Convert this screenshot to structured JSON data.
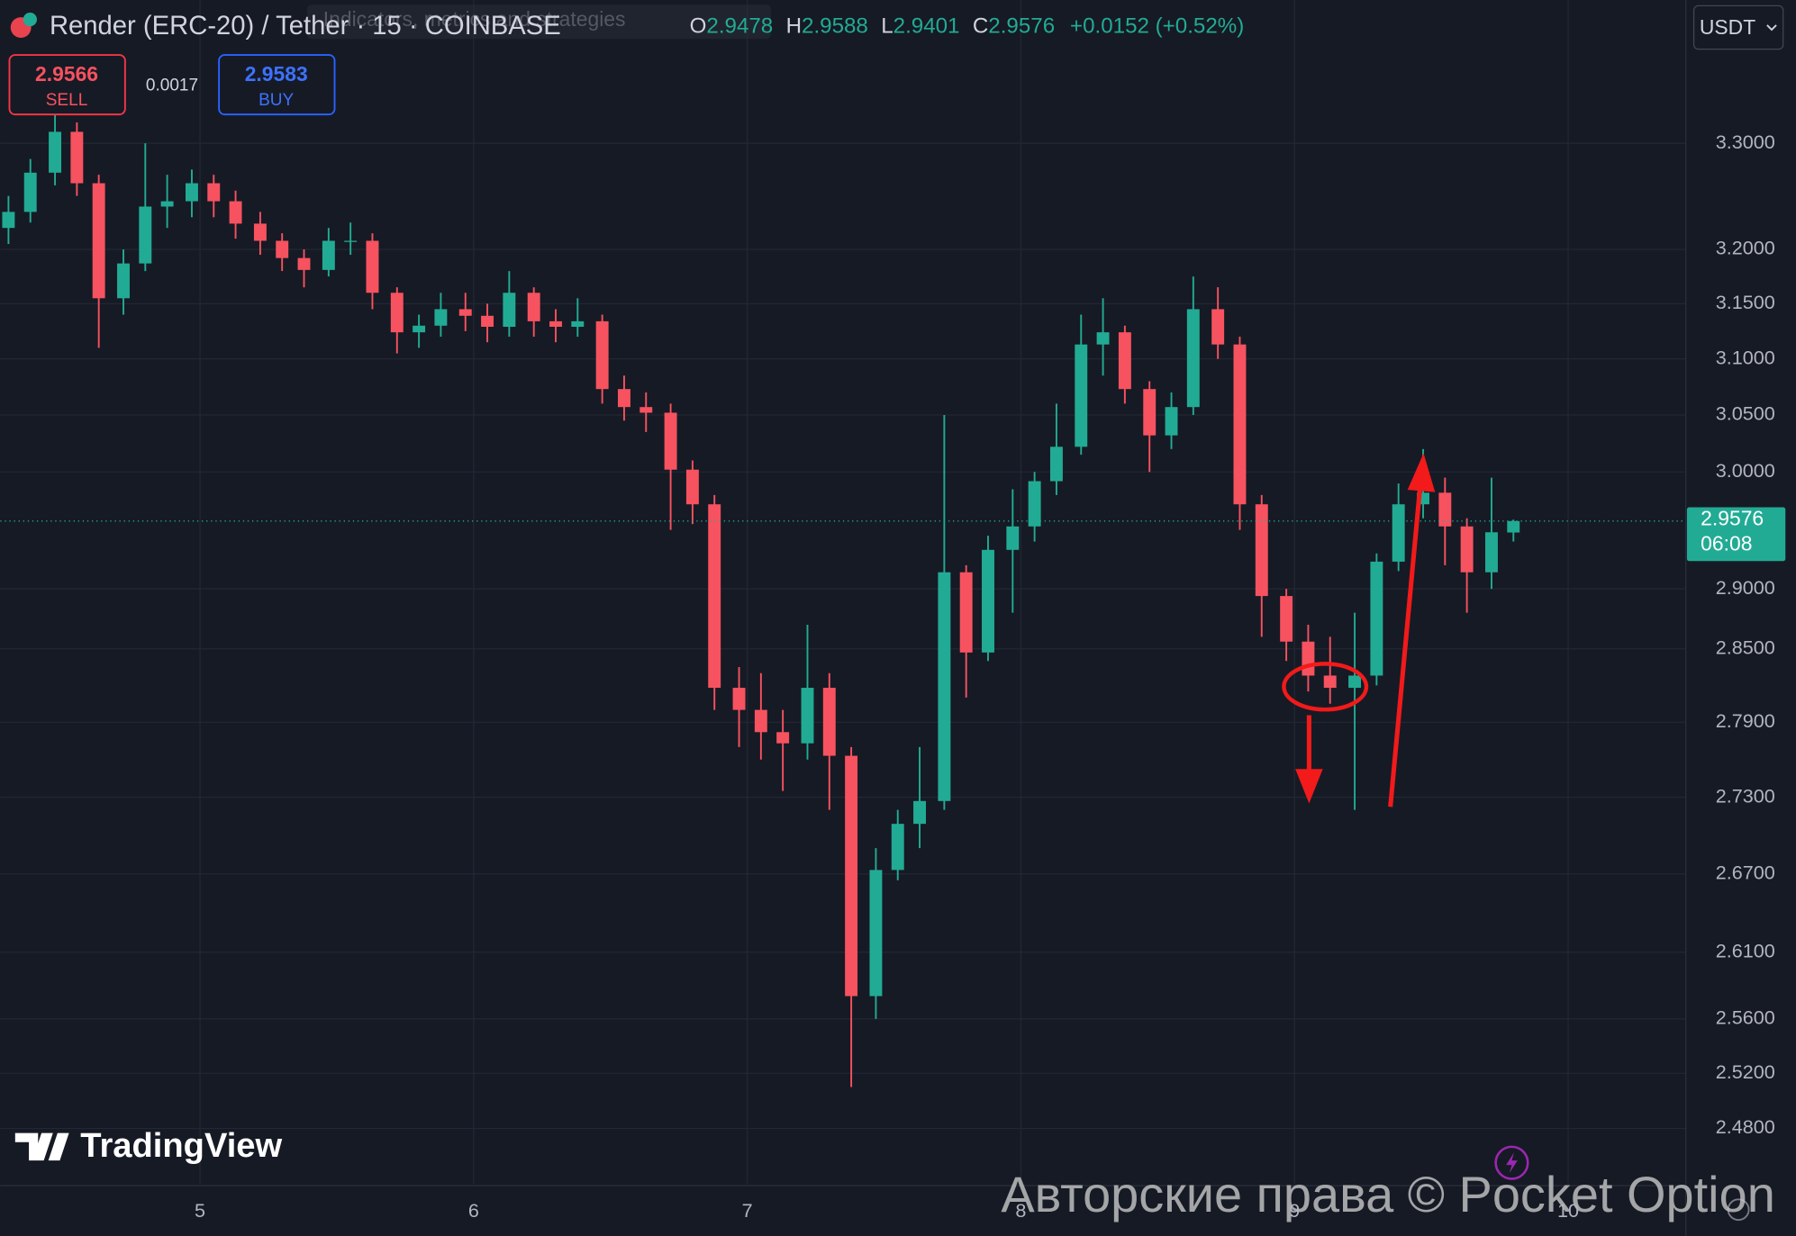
{
  "toolbar": {
    "symbol_title": "Render (ERC-20) / Tether · 15 · COINBASE",
    "indicators_hint": "Indicators, metrics and strategies",
    "ohlc_labels": [
      "O",
      "H",
      "L",
      "C"
    ],
    "change": "+0.0152 (+0.52%)",
    "currency": "USDT"
  },
  "trade": {
    "sell_price": "2.9566",
    "sell_label": "SELL",
    "spread": "0.0017",
    "buy_price": "2.9583",
    "buy_label": "BUY"
  },
  "branding": {
    "logo": "TradingView",
    "watermark": "Авторские права © Pocket Option"
  },
  "chart_data": {
    "type": "candlestick",
    "log": true,
    "grid": true,
    "up_color": "#22ab94",
    "down_color": "#f7525f",
    "countdown": "06:08",
    "xlim": [
      4.27,
      10.43
    ],
    "xticks": [
      5,
      6,
      7,
      8,
      9,
      10
    ],
    "ylim": [
      2.44,
      3.44
    ],
    "yticks": [
      {
        "value": 3.3,
        "label": "3.3000"
      },
      {
        "value": 3.2,
        "label": "3.2000"
      },
      {
        "value": 3.15,
        "label": "3.1500"
      },
      {
        "value": 3.1,
        "label": "3.1000"
      },
      {
        "value": 3.05,
        "label": "3.0500"
      },
      {
        "value": 3.0,
        "label": "3.0000"
      },
      {
        "value": 2.9,
        "label": "2.9000"
      },
      {
        "value": 2.85,
        "label": "2.8500"
      },
      {
        "value": 2.79,
        "label": "2.7900"
      },
      {
        "value": 2.73,
        "label": "2.7300"
      },
      {
        "value": 2.67,
        "label": "2.6700"
      },
      {
        "value": 2.61,
        "label": "2.6100"
      },
      {
        "value": 2.56,
        "label": "2.5600"
      },
      {
        "value": 2.52,
        "label": "2.5200"
      },
      {
        "value": 2.48,
        "label": "2.4800"
      }
    ],
    "x": [
      4.3,
      4.38,
      4.47,
      4.55,
      4.63,
      4.72,
      4.8,
      4.88,
      4.97,
      5.05,
      5.13,
      5.22,
      5.3,
      5.38,
      5.47,
      5.55,
      5.63,
      5.72,
      5.8,
      5.88,
      5.97,
      6.05,
      6.13,
      6.22,
      6.3,
      6.38,
      6.47,
      6.55,
      6.63,
      6.72,
      6.8,
      6.88,
      6.97,
      7.05,
      7.13,
      7.22,
      7.3,
      7.38,
      7.47,
      7.55,
      7.63,
      7.72,
      7.8,
      7.88,
      7.97,
      8.05,
      8.13,
      8.22,
      8.3,
      8.38,
      8.47,
      8.55,
      8.63,
      8.72,
      8.8,
      8.88,
      8.97,
      9.05,
      9.13,
      9.22,
      9.3,
      9.38,
      9.47,
      9.55,
      9.63,
      9.72,
      9.8
    ],
    "open": [
      3.22,
      3.235,
      3.272,
      3.311,
      3.262,
      3.155,
      3.187,
      3.24,
      3.245,
      3.262,
      3.245,
      3.224,
      3.208,
      3.192,
      3.181,
      3.208,
      3.208,
      3.16,
      3.124,
      3.13,
      3.145,
      3.139,
      3.129,
      3.16,
      3.134,
      3.129,
      3.134,
      3.073,
      3.057,
      3.052,
      3.002,
      2.972,
      2.818,
      2.8,
      2.782,
      2.773,
      2.818,
      2.763,
      2.577,
      2.673,
      2.709,
      2.727,
      2.914,
      2.847,
      2.933,
      2.953,
      2.992,
      3.022,
      3.113,
      3.124,
      3.073,
      3.032,
      3.057,
      3.145,
      3.113,
      2.972,
      2.894,
      2.856,
      2.828,
      2.818,
      2.828,
      2.923,
      2.972,
      2.982,
      2.953,
      2.914,
      2.9478
    ],
    "high": [
      3.25,
      3.285,
      3.33,
      3.32,
      3.27,
      3.2,
      3.3,
      3.27,
      3.275,
      3.27,
      3.255,
      3.235,
      3.215,
      3.2,
      3.22,
      3.225,
      3.215,
      3.165,
      3.14,
      3.16,
      3.16,
      3.15,
      3.18,
      3.165,
      3.145,
      3.155,
      3.14,
      3.085,
      3.07,
      3.06,
      3.01,
      2.98,
      2.835,
      2.83,
      2.8,
      2.87,
      2.83,
      2.77,
      2.69,
      2.72,
      2.77,
      3.05,
      2.92,
      2.945,
      2.985,
      3.0,
      3.06,
      3.14,
      3.155,
      3.13,
      3.08,
      3.07,
      3.175,
      3.165,
      3.12,
      2.98,
      2.9,
      2.87,
      2.86,
      2.88,
      2.93,
      2.99,
      3.02,
      2.995,
      2.96,
      2.995,
      2.9588
    ],
    "low": [
      3.205,
      3.225,
      3.26,
      3.25,
      3.11,
      3.14,
      3.18,
      3.22,
      3.23,
      3.23,
      3.21,
      3.195,
      3.18,
      3.165,
      3.175,
      3.195,
      3.145,
      3.105,
      3.11,
      3.12,
      3.125,
      3.115,
      3.12,
      3.12,
      3.115,
      3.12,
      3.06,
      3.045,
      3.035,
      2.95,
      2.955,
      2.8,
      2.77,
      2.76,
      2.735,
      2.76,
      2.72,
      2.51,
      2.56,
      2.665,
      2.69,
      2.72,
      2.81,
      2.84,
      2.88,
      2.94,
      2.98,
      3.015,
      3.085,
      3.06,
      3.0,
      3.02,
      3.05,
      3.1,
      2.95,
      2.86,
      2.84,
      2.815,
      2.805,
      2.72,
      2.82,
      2.915,
      2.96,
      2.92,
      2.88,
      2.9,
      2.9401
    ],
    "close": [
      3.235,
      3.272,
      3.311,
      3.262,
      3.155,
      3.187,
      3.24,
      3.245,
      3.262,
      3.245,
      3.224,
      3.208,
      3.192,
      3.181,
      3.208,
      3.208,
      3.16,
      3.124,
      3.13,
      3.145,
      3.139,
      3.129,
      3.16,
      3.134,
      3.129,
      3.134,
      3.073,
      3.057,
      3.052,
      3.002,
      2.972,
      2.818,
      2.8,
      2.782,
      2.773,
      2.818,
      2.763,
      2.577,
      2.673,
      2.709,
      2.727,
      2.914,
      2.847,
      2.933,
      2.953,
      2.992,
      3.022,
      3.113,
      3.124,
      3.073,
      3.032,
      3.057,
      3.145,
      3.113,
      2.972,
      2.894,
      2.856,
      2.828,
      2.818,
      2.828,
      2.923,
      2.972,
      2.982,
      2.953,
      2.914,
      2.948,
      2.9576
    ]
  }
}
